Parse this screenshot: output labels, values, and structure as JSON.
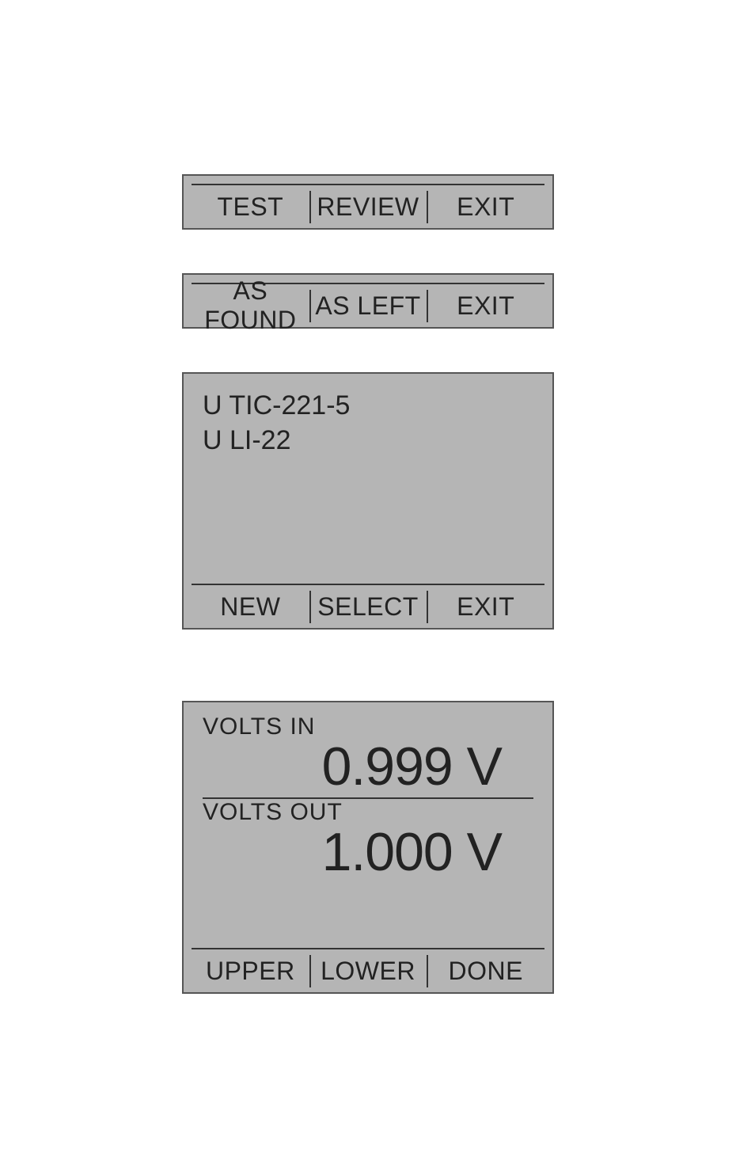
{
  "panel1": {
    "buttons": {
      "b1": "TEST",
      "b2": "REVIEW",
      "b3": "EXIT"
    }
  },
  "panel2": {
    "buttons": {
      "b1": "AS FOUND",
      "b2": "AS LEFT",
      "b3": "EXIT"
    }
  },
  "panel3": {
    "line1": "U TIC-221-5",
    "line2": "U LI-22",
    "buttons": {
      "b1": "NEW",
      "b2": "SELECT",
      "b3": "EXIT"
    }
  },
  "panel4": {
    "in_label": "VOLTS IN",
    "in_value": "0.999 V",
    "out_label": "VOLTS  OUT",
    "out_value": "1.000 V",
    "buttons": {
      "b1": "UPPER",
      "b2": "LOWER",
      "b3": "DONE"
    }
  },
  "colors": {
    "panel_bg": "#b5b5b5",
    "border": "#555",
    "divider": "#333",
    "text": "#222",
    "page_bg": "#ffffff"
  }
}
